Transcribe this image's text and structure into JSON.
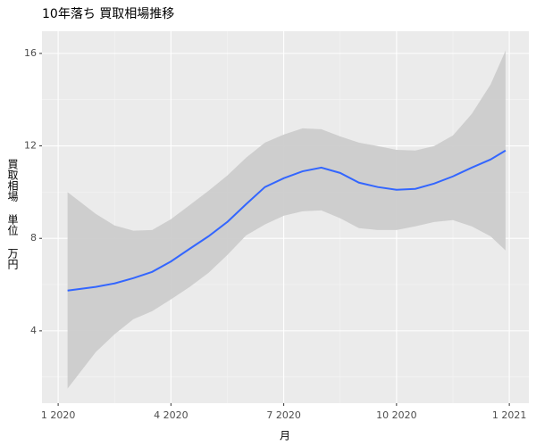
{
  "chart_data": {
    "type": "line",
    "title": "10年落ち 買取相場推移",
    "x_label": "月",
    "y_label": "買取相場 単位 万円",
    "xlim": [
      -0.43,
      12.52
    ],
    "xticks": [
      {
        "value": 0,
        "label": "1 2020"
      },
      {
        "value": 3,
        "label": "4 2020"
      },
      {
        "value": 6,
        "label": "7 2020"
      },
      {
        "value": 9,
        "label": "10 2020"
      },
      {
        "value": 12,
        "label": "1 2021"
      }
    ],
    "ylim": [
      0.87,
      16.96
    ],
    "yticks": [
      4,
      8,
      12,
      16
    ],
    "grid": true,
    "x": [
      0.25,
      1,
      1.5,
      2,
      2.5,
      3,
      3.5,
      4,
      4.5,
      5,
      5.5,
      6,
      6.5,
      7,
      7.5,
      8,
      8.5,
      9,
      9.5,
      10,
      10.5,
      11,
      11.5,
      11.9
    ],
    "series": [
      {
        "color": "#3366ff",
        "ribbon_color": "#cccccc",
        "values": [
          5.74,
          5.9,
          6.05,
          6.28,
          6.55,
          7.0,
          7.55,
          8.09,
          8.71,
          9.48,
          10.22,
          10.6,
          10.9,
          11.06,
          10.83,
          10.41,
          10.22,
          10.1,
          10.14,
          10.37,
          10.68,
          11.06,
          11.41,
          11.8
        ],
        "upper": [
          10.0,
          9.06,
          8.56,
          8.33,
          8.36,
          8.83,
          9.44,
          10.06,
          10.72,
          11.49,
          12.14,
          12.49,
          12.76,
          12.72,
          12.41,
          12.14,
          11.99,
          11.83,
          11.8,
          11.99,
          12.45,
          13.38,
          14.65,
          16.12
        ],
        "lower": [
          1.5,
          3.08,
          3.85,
          4.5,
          4.85,
          5.36,
          5.9,
          6.51,
          7.28,
          8.13,
          8.6,
          8.98,
          9.17,
          9.21,
          8.87,
          8.44,
          8.36,
          8.36,
          8.52,
          8.71,
          8.79,
          8.52,
          8.09,
          7.48
        ]
      }
    ]
  }
}
